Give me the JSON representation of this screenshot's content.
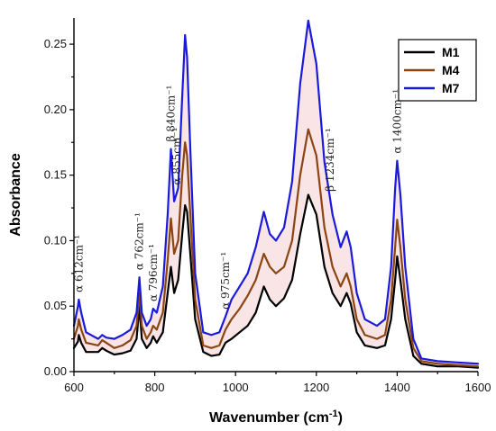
{
  "chart_data": {
    "type": "line",
    "xlabel": "Wavenumber (cm-1)",
    "ylabel": "Absorbance",
    "xlim": [
      600,
      1600
    ],
    "ylim": [
      0,
      0.27
    ],
    "x_ticks": [
      600,
      800,
      1000,
      1200,
      1400,
      1600
    ],
    "y_ticks": [
      0.0,
      0.05,
      0.1,
      0.15,
      0.2,
      0.25
    ],
    "x_tick_labels": [
      "600",
      "800",
      "1000",
      "1200",
      "1400",
      "1600"
    ],
    "y_tick_labels": [
      "0.00",
      "0.05",
      "0.10",
      "0.15",
      "0.20",
      "0.25"
    ],
    "legend": {
      "placement": "top-right",
      "entries": [
        "M1",
        "M4",
        "M7"
      ]
    },
    "annotations": [
      {
        "text": "α 612cm⁻¹",
        "x": 612
      },
      {
        "text": "α 762cm⁻¹",
        "x": 762
      },
      {
        "text": "α 796cm⁻¹",
        "x": 796
      },
      {
        "text": "β 840cm⁻¹",
        "x": 840
      },
      {
        "text": "α 855cm⁻¹",
        "x": 855
      },
      {
        "text": "α 975cm⁻¹",
        "x": 975
      },
      {
        "text": "β 1234cm⁻¹",
        "x": 1234
      },
      {
        "text": "α 1400cm⁻¹",
        "x": 1400
      }
    ],
    "series": [
      {
        "name": "M1",
        "color": "#000000",
        "points": [
          [
            600,
            0.018
          ],
          [
            610,
            0.023
          ],
          [
            612,
            0.028
          ],
          [
            618,
            0.022
          ],
          [
            630,
            0.015
          ],
          [
            660,
            0.015
          ],
          [
            670,
            0.018
          ],
          [
            680,
            0.016
          ],
          [
            700,
            0.013
          ],
          [
            720,
            0.014
          ],
          [
            740,
            0.016
          ],
          [
            755,
            0.025
          ],
          [
            762,
            0.05
          ],
          [
            768,
            0.025
          ],
          [
            780,
            0.018
          ],
          [
            790,
            0.022
          ],
          [
            796,
            0.027
          ],
          [
            805,
            0.022
          ],
          [
            820,
            0.03
          ],
          [
            832,
            0.06
          ],
          [
            840,
            0.08
          ],
          [
            848,
            0.06
          ],
          [
            858,
            0.07
          ],
          [
            868,
            0.105
          ],
          [
            875,
            0.127
          ],
          [
            880,
            0.122
          ],
          [
            888,
            0.09
          ],
          [
            900,
            0.04
          ],
          [
            920,
            0.015
          ],
          [
            940,
            0.012
          ],
          [
            960,
            0.013
          ],
          [
            975,
            0.022
          ],
          [
            990,
            0.025
          ],
          [
            1010,
            0.03
          ],
          [
            1030,
            0.035
          ],
          [
            1050,
            0.045
          ],
          [
            1070,
            0.065
          ],
          [
            1085,
            0.055
          ],
          [
            1100,
            0.05
          ],
          [
            1120,
            0.056
          ],
          [
            1140,
            0.07
          ],
          [
            1160,
            0.105
          ],
          [
            1180,
            0.135
          ],
          [
            1200,
            0.12
          ],
          [
            1220,
            0.08
          ],
          [
            1240,
            0.06
          ],
          [
            1260,
            0.05
          ],
          [
            1275,
            0.06
          ],
          [
            1285,
            0.052
          ],
          [
            1300,
            0.03
          ],
          [
            1320,
            0.02
          ],
          [
            1350,
            0.018
          ],
          [
            1370,
            0.02
          ],
          [
            1385,
            0.04
          ],
          [
            1395,
            0.07
          ],
          [
            1400,
            0.088
          ],
          [
            1408,
            0.07
          ],
          [
            1420,
            0.04
          ],
          [
            1440,
            0.012
          ],
          [
            1460,
            0.006
          ],
          [
            1500,
            0.004
          ],
          [
            1550,
            0.004
          ],
          [
            1600,
            0.003
          ]
        ]
      },
      {
        "name": "M4",
        "color": "#8b4513",
        "points": [
          [
            600,
            0.025
          ],
          [
            610,
            0.035
          ],
          [
            612,
            0.04
          ],
          [
            618,
            0.032
          ],
          [
            630,
            0.022
          ],
          [
            660,
            0.02
          ],
          [
            670,
            0.024
          ],
          [
            680,
            0.022
          ],
          [
            700,
            0.018
          ],
          [
            720,
            0.02
          ],
          [
            740,
            0.024
          ],
          [
            755,
            0.035
          ],
          [
            762,
            0.06
          ],
          [
            768,
            0.035
          ],
          [
            780,
            0.025
          ],
          [
            790,
            0.03
          ],
          [
            796,
            0.035
          ],
          [
            805,
            0.032
          ],
          [
            820,
            0.045
          ],
          [
            832,
            0.085
          ],
          [
            840,
            0.117
          ],
          [
            848,
            0.09
          ],
          [
            858,
            0.1
          ],
          [
            868,
            0.15
          ],
          [
            875,
            0.175
          ],
          [
            880,
            0.165
          ],
          [
            888,
            0.12
          ],
          [
            900,
            0.055
          ],
          [
            920,
            0.02
          ],
          [
            940,
            0.018
          ],
          [
            960,
            0.02
          ],
          [
            975,
            0.032
          ],
          [
            990,
            0.04
          ],
          [
            1010,
            0.048
          ],
          [
            1030,
            0.058
          ],
          [
            1050,
            0.07
          ],
          [
            1070,
            0.09
          ],
          [
            1085,
            0.08
          ],
          [
            1100,
            0.075
          ],
          [
            1120,
            0.08
          ],
          [
            1140,
            0.1
          ],
          [
            1160,
            0.15
          ],
          [
            1180,
            0.185
          ],
          [
            1200,
            0.165
          ],
          [
            1220,
            0.11
          ],
          [
            1240,
            0.08
          ],
          [
            1260,
            0.065
          ],
          [
            1275,
            0.075
          ],
          [
            1285,
            0.065
          ],
          [
            1300,
            0.04
          ],
          [
            1320,
            0.028
          ],
          [
            1350,
            0.025
          ],
          [
            1370,
            0.028
          ],
          [
            1385,
            0.055
          ],
          [
            1395,
            0.095
          ],
          [
            1400,
            0.116
          ],
          [
            1408,
            0.095
          ],
          [
            1420,
            0.055
          ],
          [
            1440,
            0.018
          ],
          [
            1460,
            0.008
          ],
          [
            1500,
            0.006
          ],
          [
            1550,
            0.005
          ],
          [
            1600,
            0.004
          ]
        ]
      },
      {
        "name": "M7",
        "color": "#1a1adb",
        "points": [
          [
            600,
            0.035
          ],
          [
            610,
            0.05
          ],
          [
            612,
            0.055
          ],
          [
            618,
            0.045
          ],
          [
            630,
            0.03
          ],
          [
            660,
            0.025
          ],
          [
            670,
            0.028
          ],
          [
            680,
            0.026
          ],
          [
            700,
            0.025
          ],
          [
            720,
            0.028
          ],
          [
            740,
            0.032
          ],
          [
            755,
            0.045
          ],
          [
            762,
            0.072
          ],
          [
            768,
            0.045
          ],
          [
            780,
            0.035
          ],
          [
            790,
            0.04
          ],
          [
            796,
            0.048
          ],
          [
            805,
            0.045
          ],
          [
            820,
            0.065
          ],
          [
            832,
            0.12
          ],
          [
            840,
            0.17
          ],
          [
            848,
            0.13
          ],
          [
            858,
            0.14
          ],
          [
            868,
            0.21
          ],
          [
            875,
            0.257
          ],
          [
            880,
            0.24
          ],
          [
            888,
            0.17
          ],
          [
            900,
            0.075
          ],
          [
            920,
            0.03
          ],
          [
            940,
            0.028
          ],
          [
            960,
            0.03
          ],
          [
            975,
            0.042
          ],
          [
            990,
            0.055
          ],
          [
            1010,
            0.065
          ],
          [
            1030,
            0.075
          ],
          [
            1050,
            0.095
          ],
          [
            1070,
            0.122
          ],
          [
            1085,
            0.105
          ],
          [
            1100,
            0.1
          ],
          [
            1120,
            0.11
          ],
          [
            1140,
            0.145
          ],
          [
            1160,
            0.22
          ],
          [
            1180,
            0.268
          ],
          [
            1200,
            0.235
          ],
          [
            1220,
            0.16
          ],
          [
            1240,
            0.12
          ],
          [
            1260,
            0.095
          ],
          [
            1275,
            0.107
          ],
          [
            1285,
            0.095
          ],
          [
            1300,
            0.06
          ],
          [
            1320,
            0.04
          ],
          [
            1350,
            0.035
          ],
          [
            1370,
            0.04
          ],
          [
            1385,
            0.08
          ],
          [
            1395,
            0.14
          ],
          [
            1400,
            0.161
          ],
          [
            1408,
            0.135
          ],
          [
            1420,
            0.08
          ],
          [
            1440,
            0.025
          ],
          [
            1460,
            0.01
          ],
          [
            1500,
            0.008
          ],
          [
            1550,
            0.007
          ],
          [
            1600,
            0.006
          ]
        ]
      }
    ]
  }
}
